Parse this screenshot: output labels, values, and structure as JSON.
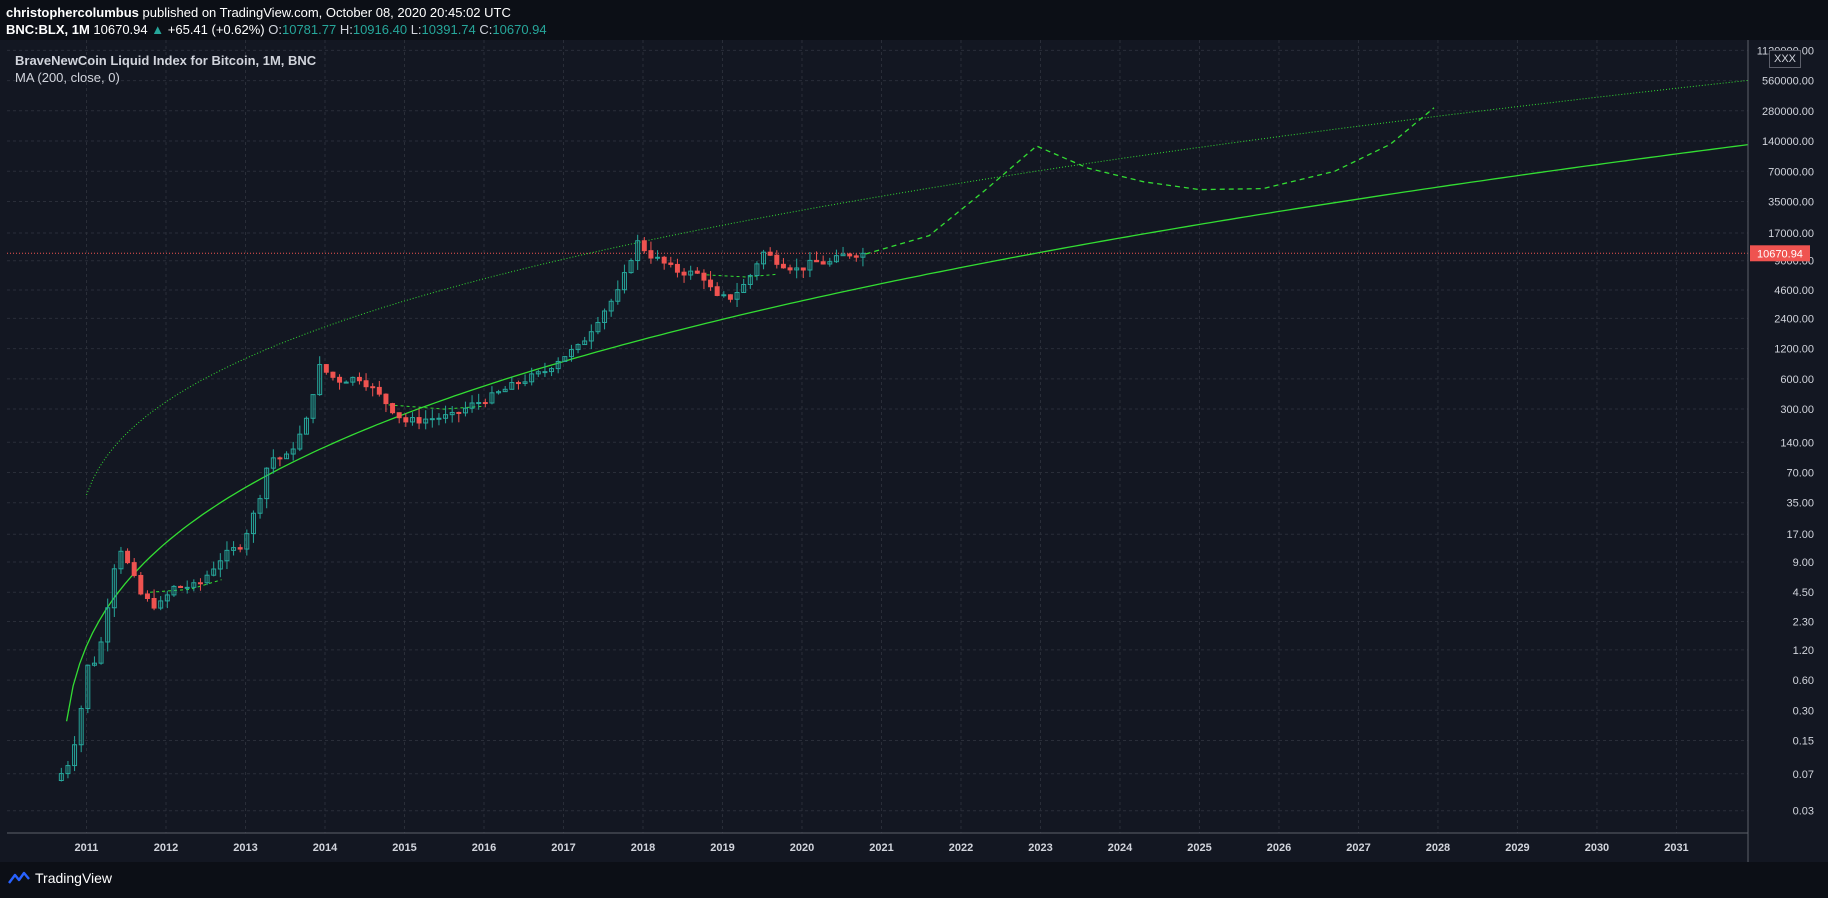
{
  "header": {
    "author": "christophercolumbus",
    "published_text": "published on TradingView.com, October 08, 2020 20:45:02 UTC",
    "symbol": "BNC:BLX, 1M",
    "last_price": "10670.94",
    "arrow": "▲",
    "change": "+65.41 (+0.62%)",
    "open_label": "O:",
    "open": "10781.77",
    "high_label": "H:",
    "high": "10916.40",
    "low_label": "L:",
    "low": "10391.74",
    "close_label": "C:",
    "close": "10670.94"
  },
  "legend": {
    "title": "BraveNewCoin Liquid Index for Bitcoin, 1M, BNC",
    "indicator": "MA (200, close, 0)"
  },
  "scale_badge": "XXX",
  "footer": {
    "brand": "TradingView",
    "logo_icon": "tradingview-logo-icon"
  },
  "colors": {
    "background": "#131722",
    "grid": "#2a2e39",
    "up_candle": "#26a69a",
    "down_candle": "#ef5350",
    "ma_line": "#33dd33",
    "price_line": "#ef5350"
  },
  "chart_data": {
    "type": "candlestick",
    "y_scale": "log",
    "ylim": [
      0.018,
      1420000
    ],
    "xlim": [
      2010.0,
      2031.9
    ],
    "x_ticks": [
      "2011",
      "2012",
      "2013",
      "2014",
      "2015",
      "2016",
      "2017",
      "2018",
      "2019",
      "2020",
      "2021",
      "2022",
      "2023",
      "2024",
      "2025",
      "2026",
      "2027",
      "2028",
      "2029",
      "2030",
      "2031"
    ],
    "y_ticks": [
      0.03,
      0.07,
      0.15,
      0.3,
      0.6,
      1.2,
      2.3,
      4.5,
      9,
      17,
      35,
      70,
      140,
      300,
      600,
      1200,
      2400,
      4600,
      9000,
      17000,
      35000,
      70000,
      140000,
      280000,
      560000,
      1120000
    ],
    "y_tick_labels": [
      "0.03",
      "0.07",
      "0.15",
      "0.30",
      "0.60",
      "1.20",
      "2.30",
      "4.50",
      "9.00",
      "17.00",
      "35.00",
      "70.00",
      "140.00",
      "300.00",
      "600.00",
      "1200.00",
      "2400.00",
      "4600.00",
      "9000.00",
      "17000.00",
      "35000.00",
      "70000.00",
      "140000.00",
      "280000.00",
      "560000.00",
      "1120000.00"
    ],
    "current_price": 10670.94,
    "current_price_label": "10670.94",
    "candle_anchors": [
      [
        2010.6,
        0.06
      ],
      [
        2010.75,
        0.08
      ],
      [
        2010.9,
        0.2
      ],
      [
        2011.0,
        0.8
      ],
      [
        2011.15,
        1.0
      ],
      [
        2011.4,
        14
      ],
      [
        2011.7,
        4
      ],
      [
        2011.9,
        3.2
      ],
      [
        2012.1,
        5
      ],
      [
        2012.4,
        5.2
      ],
      [
        2012.7,
        10
      ],
      [
        2012.95,
        13.5
      ],
      [
        2013.15,
        33
      ],
      [
        2013.3,
        100
      ],
      [
        2013.5,
        95
      ],
      [
        2013.75,
        200
      ],
      [
        2013.92,
        800
      ],
      [
        2014.15,
        580
      ],
      [
        2014.45,
        620
      ],
      [
        2014.75,
        360
      ],
      [
        2015.0,
        225
      ],
      [
        2015.3,
        240
      ],
      [
        2015.6,
        255
      ],
      [
        2015.85,
        330
      ],
      [
        2016.1,
        400
      ],
      [
        2016.45,
        560
      ],
      [
        2016.75,
        700
      ],
      [
        2016.95,
        960
      ],
      [
        2017.2,
        1250
      ],
      [
        2017.45,
        2500
      ],
      [
        2017.7,
        4500
      ],
      [
        2017.92,
        14000
      ],
      [
        2018.1,
        10200
      ],
      [
        2018.4,
        7200
      ],
      [
        2018.75,
        6500
      ],
      [
        2018.92,
        3800
      ],
      [
        2019.1,
        3900
      ],
      [
        2019.3,
        5400
      ],
      [
        2019.5,
        11000
      ],
      [
        2019.75,
        8500
      ],
      [
        2019.95,
        7300
      ],
      [
        2020.15,
        8700
      ],
      [
        2020.35,
        8600
      ],
      [
        2020.55,
        10500
      ],
      [
        2020.77,
        10670.94
      ]
    ]
  }
}
